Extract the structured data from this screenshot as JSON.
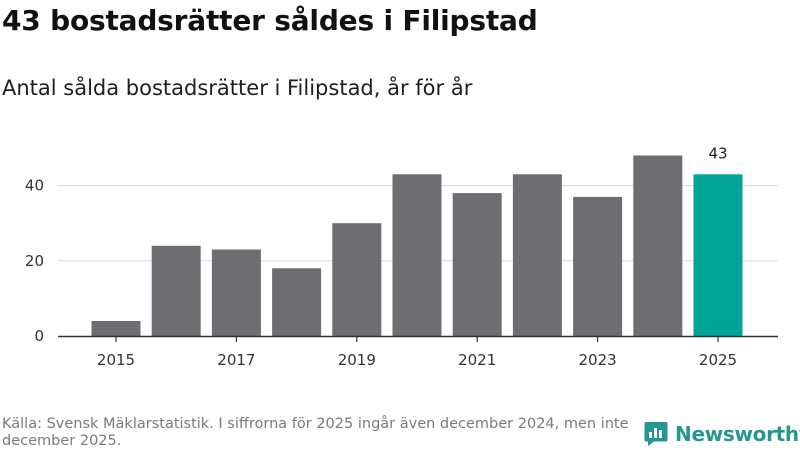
{
  "title": "43 bostadsrätter såldes i Filipstad",
  "subtitle": "Antal sålda bostadsrätter i Filipstad, år för år",
  "footer": "Källa: Svensk Mäklarstatistik. I siffrorna för 2025 ingår även december 2024, men inte december 2025.",
  "logo_text": "Newsworthy",
  "colors": {
    "bar": "#6e6d72",
    "highlight": "#00a398",
    "grid": "#d9d9d9",
    "axis": "#333333"
  },
  "chart_data": {
    "type": "bar",
    "categories": [
      "2015",
      "2016",
      "2017",
      "2018",
      "2019",
      "2020",
      "2021",
      "2022",
      "2023",
      "2024",
      "2025"
    ],
    "values": [
      4,
      24,
      23,
      18,
      30,
      43,
      38,
      43,
      37,
      48,
      43
    ],
    "x_tick_labels": [
      "2015",
      "2017",
      "2019",
      "2021",
      "2023",
      "2025"
    ],
    "y_ticks": [
      0,
      20,
      40
    ],
    "ylim": [
      0,
      50
    ],
    "highlight_category": "2025",
    "annotations": [
      {
        "category": "2025",
        "text": "43"
      }
    ],
    "title": "43 bostadsrätter såldes i Filipstad",
    "xlabel": "",
    "ylabel": ""
  }
}
